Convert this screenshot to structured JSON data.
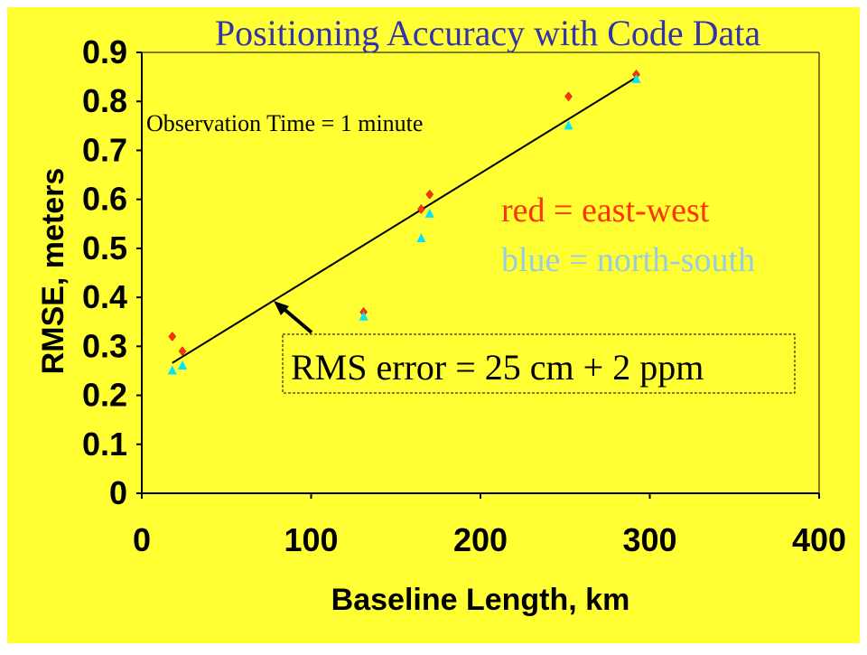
{
  "colors": {
    "background": "#ffff33",
    "title": "#3333aa",
    "east_west": "#ff3300",
    "north_south": "#00e5ff",
    "legend_blue_text": "#99ccdd",
    "axis": "#000000"
  },
  "chart_data": {
    "type": "scatter",
    "title": "Positioning Accuracy with Code Data",
    "xlabel": "Baseline Length, km",
    "ylabel": "RMSE, meters",
    "xlim": [
      0,
      400
    ],
    "ylim": [
      0,
      0.9
    ],
    "xticks": [
      "0",
      "100",
      "200",
      "300",
      "400"
    ],
    "yticks": [
      "0",
      "0.1",
      "0.2",
      "0.3",
      "0.4",
      "0.5",
      "0.6",
      "0.7",
      "0.8",
      "0.9"
    ],
    "grid": false,
    "series": [
      {
        "name": "east-west",
        "color": "#ff3300",
        "marker": "diamond",
        "x": [
          18,
          24,
          131,
          165,
          170,
          252,
          292
        ],
        "y": [
          0.32,
          0.29,
          0.37,
          0.58,
          0.61,
          0.81,
          0.855
        ]
      },
      {
        "name": "north-south",
        "color": "#00e5ff",
        "marker": "triangle",
        "x": [
          18,
          24,
          131,
          165,
          170,
          252,
          292
        ],
        "y": [
          0.25,
          0.26,
          0.36,
          0.52,
          0.57,
          0.75,
          0.845
        ]
      }
    ],
    "fit_line": {
      "x": [
        18,
        292
      ],
      "y": [
        0.266,
        0.849
      ]
    },
    "annotations": {
      "observation": "Observation Time = 1 minute",
      "legend_red": "red = east-west",
      "legend_blue": "blue = north-south",
      "rms_error": "RMS error = 25 cm + 2 ppm"
    }
  }
}
